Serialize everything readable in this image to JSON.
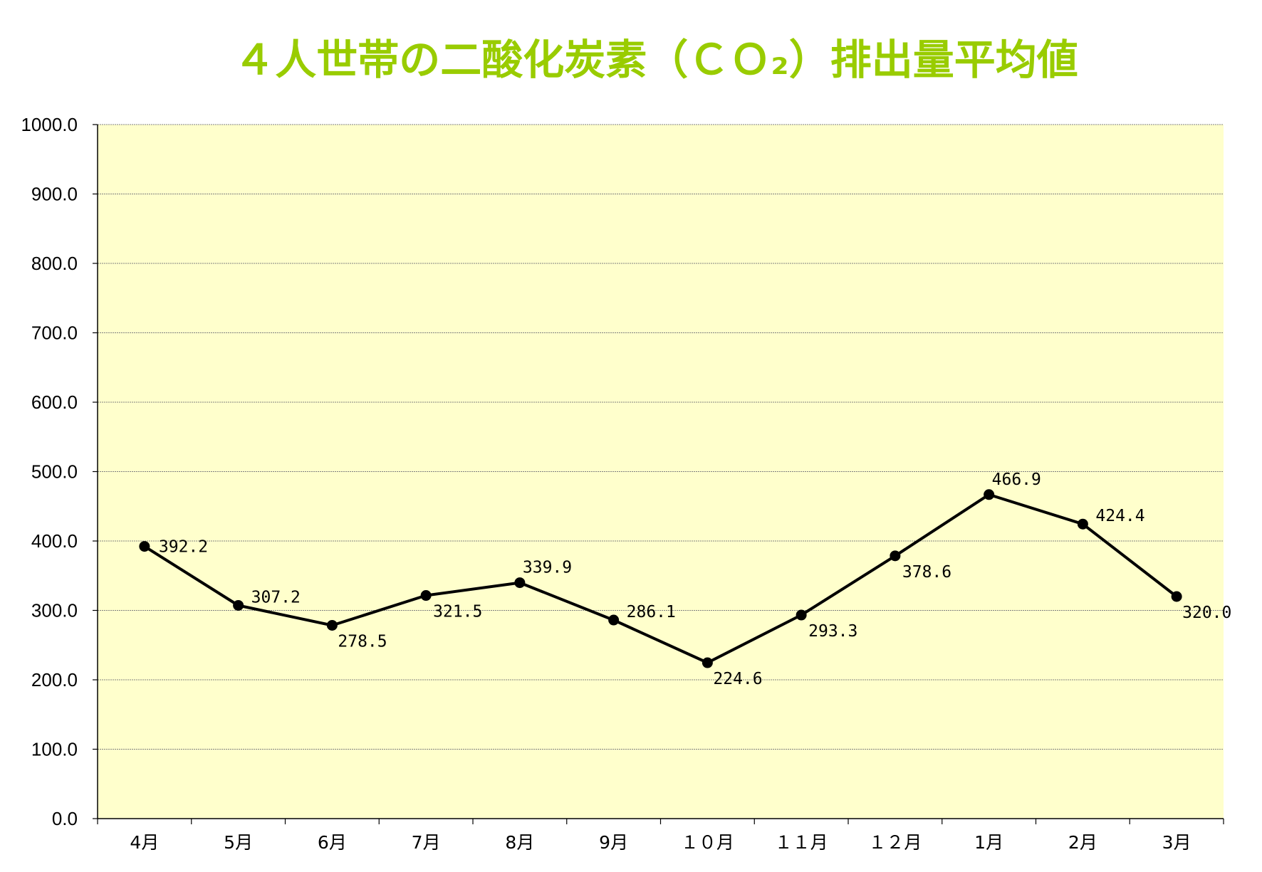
{
  "chart_data": {
    "type": "line",
    "title": "４人世帯の二酸化炭素（ＣＯ₂）排出量平均値",
    "categories": [
      "4月",
      "5月",
      "6月",
      "7月",
      "8月",
      "9月",
      "１０月",
      "１１月",
      "１２月",
      "1月",
      "2月",
      "3月"
    ],
    "series": [
      {
        "values": [
          392.2,
          307.2,
          278.5,
          321.5,
          339.9,
          286.1,
          224.6,
          293.3,
          378.6,
          466.9,
          424.4,
          320.0
        ]
      }
    ],
    "value_labels": [
      "392.2",
      "307.2",
      "278.5",
      "321.5",
      "339.9",
      "286.1",
      "224.6",
      "293.3",
      "378.6",
      "466.9",
      "424.4",
      "320.0"
    ],
    "ylim": [
      0,
      1000
    ],
    "yticks": [
      "0.0",
      "100.0",
      "200.0",
      "300.0",
      "400.0",
      "500.0",
      "600.0",
      "700.0",
      "800.0",
      "900.0",
      "1000.0"
    ],
    "grid": true,
    "legend": "none",
    "colors": {
      "title": "#99cc00",
      "plot_background": "#ffffcc",
      "line": "#000000",
      "gridline": "#808080"
    }
  }
}
